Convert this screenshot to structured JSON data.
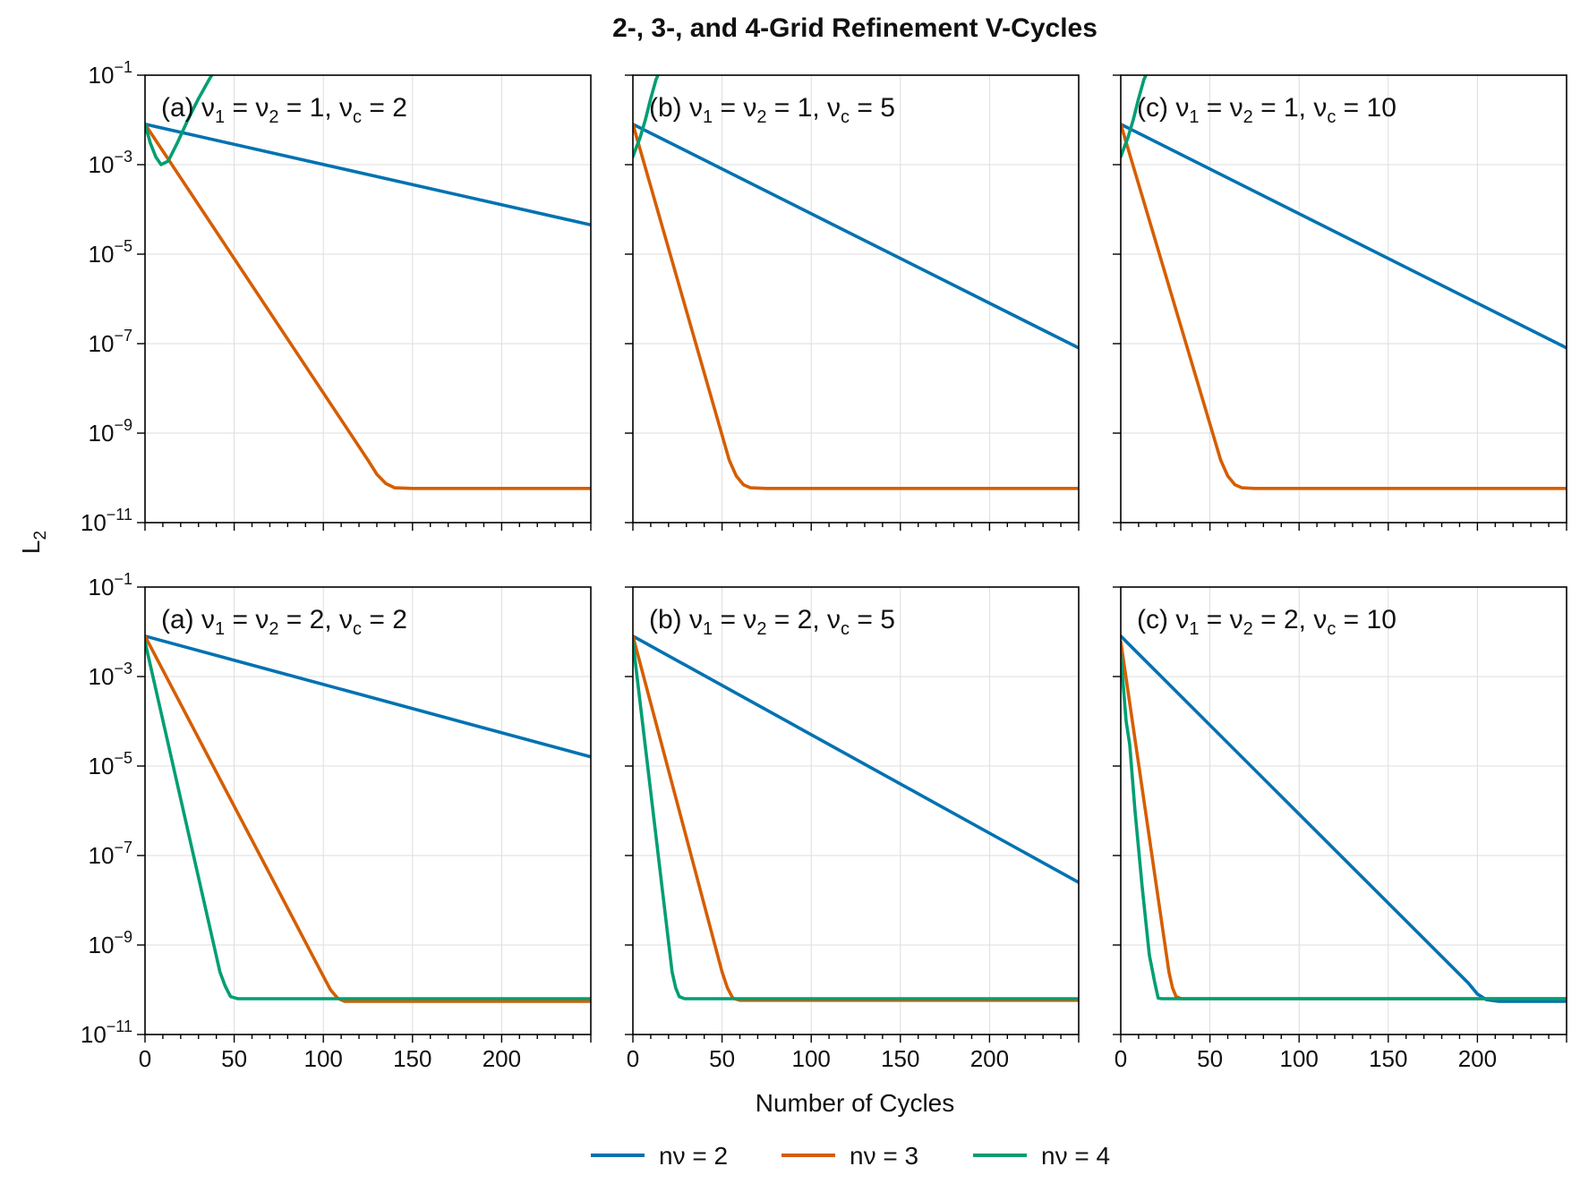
{
  "figure": {
    "title": "2-, 3-, and 4-Grid Refinement V-Cycles",
    "xlabel": "Number of Cycles",
    "ylabel_base": "L",
    "ylabel_sub": "2"
  },
  "legend": {
    "position": "bottom-center",
    "items": [
      {
        "label": "nν = 2",
        "color": "#0072B2"
      },
      {
        "label": "nν = 3",
        "color": "#D55E00"
      },
      {
        "label": "nν = 4",
        "color": "#009E73"
      }
    ]
  },
  "chart_data": [
    {
      "type": "line",
      "panel": "top-left",
      "label_prefix": "(a)",
      "nu": "1",
      "nuc": "2",
      "xlim": [
        0,
        250
      ],
      "ylim": [
        1e-11,
        0.1
      ],
      "yscale": "log",
      "grid": true,
      "xticks": [
        0,
        50,
        100,
        150,
        200
      ],
      "yticks": [
        -11,
        -9,
        -7,
        -5,
        -3,
        -1
      ],
      "series": [
        {
          "name": "nν = 2",
          "color": "#0072B2",
          "x": [
            0,
            250
          ],
          "y": [
            0.008,
            4.5e-05
          ]
        },
        {
          "name": "nν = 3",
          "color": "#D55E00",
          "x": [
            0,
            125,
            130,
            135,
            140,
            150,
            250
          ],
          "y": [
            0.008,
            2.5e-10,
            1.2e-10,
            7.5e-11,
            6e-11,
            5.8e-11,
            5.8e-11
          ]
        },
        {
          "name": "nν = 4",
          "color": "#009E73",
          "x": [
            0,
            3,
            6,
            9,
            13,
            18,
            24,
            30,
            36,
            40
          ],
          "y": [
            0.008,
            0.003,
            0.0015,
            0.001,
            0.0012,
            0.003,
            0.01,
            0.03,
            0.08,
            0.15
          ]
        }
      ]
    },
    {
      "type": "line",
      "panel": "top-middle",
      "label_prefix": "(b)",
      "nu": "1",
      "nuc": "5",
      "xlim": [
        0,
        250
      ],
      "ylim": [
        1e-11,
        0.1
      ],
      "yscale": "log",
      "grid": true,
      "xticks": [
        0,
        50,
        100,
        150,
        200
      ],
      "yticks": [
        -11,
        -9,
        -7,
        -5,
        -3,
        -1
      ],
      "series": [
        {
          "name": "nν = 2",
          "color": "#0072B2",
          "x": [
            0,
            250
          ],
          "y": [
            0.008,
            8e-08
          ]
        },
        {
          "name": "nν = 3",
          "color": "#D55E00",
          "x": [
            0,
            54,
            58,
            62,
            66,
            75,
            250
          ],
          "y": [
            0.008,
            2.5e-10,
            1.1e-10,
            7e-11,
            6e-11,
            5.8e-11,
            5.8e-11
          ]
        },
        {
          "name": "nν = 4",
          "color": "#009E73",
          "x": [
            0,
            2,
            4,
            7,
            10,
            13,
            16
          ],
          "y": [
            0.0015,
            0.0025,
            0.004,
            0.01,
            0.03,
            0.08,
            0.15
          ]
        }
      ]
    },
    {
      "type": "line",
      "panel": "top-right",
      "label_prefix": "(c)",
      "nu": "1",
      "nuc": "10",
      "xlim": [
        0,
        250
      ],
      "ylim": [
        1e-11,
        0.1
      ],
      "yscale": "log",
      "grid": true,
      "xticks": [
        0,
        50,
        100,
        150,
        200
      ],
      "yticks": [
        -11,
        -9,
        -7,
        -5,
        -3,
        -1
      ],
      "series": [
        {
          "name": "nν = 2",
          "color": "#0072B2",
          "x": [
            0,
            250
          ],
          "y": [
            0.008,
            8e-08
          ]
        },
        {
          "name": "nν = 3",
          "color": "#D55E00",
          "x": [
            0,
            56,
            60,
            64,
            68,
            75,
            250
          ],
          "y": [
            0.008,
            2.5e-10,
            1.1e-10,
            7e-11,
            6e-11,
            5.8e-11,
            5.8e-11
          ]
        },
        {
          "name": "nν = 4",
          "color": "#009E73",
          "x": [
            0,
            2,
            4,
            7,
            10,
            13,
            16
          ],
          "y": [
            0.0015,
            0.0025,
            0.004,
            0.01,
            0.03,
            0.08,
            0.15
          ]
        }
      ]
    },
    {
      "type": "line",
      "panel": "bottom-left",
      "label_prefix": "(a)",
      "nu": "2",
      "nuc": "2",
      "xlim": [
        0,
        250
      ],
      "ylim": [
        1e-11,
        0.1
      ],
      "yscale": "log",
      "grid": true,
      "xticks": [
        0,
        50,
        100,
        150,
        200
      ],
      "yticks": [
        -11,
        -9,
        -7,
        -5,
        -3,
        -1
      ],
      "series": [
        {
          "name": "nν = 2",
          "color": "#0072B2",
          "x": [
            0,
            250
          ],
          "y": [
            0.008,
            1.6e-05
          ]
        },
        {
          "name": "nν = 3",
          "color": "#D55E00",
          "x": [
            0,
            100,
            104,
            108,
            112,
            120,
            250
          ],
          "y": [
            0.008,
            2e-10,
            1e-10,
            6.5e-11,
            5.5e-11,
            5.5e-11,
            5.5e-11
          ]
        },
        {
          "name": "nν = 4",
          "color": "#009E73",
          "x": [
            0,
            42,
            45,
            48,
            52,
            60,
            250
          ],
          "y": [
            0.006,
            2.5e-10,
            1.2e-10,
            7e-11,
            6.3e-11,
            6.3e-11,
            6.3e-11
          ]
        }
      ]
    },
    {
      "type": "line",
      "panel": "bottom-middle",
      "label_prefix": "(b)",
      "nu": "2",
      "nuc": "5",
      "xlim": [
        0,
        250
      ],
      "ylim": [
        1e-11,
        0.1
      ],
      "yscale": "log",
      "grid": true,
      "xticks": [
        0,
        50,
        100,
        150,
        200
      ],
      "yticks": [
        -11,
        -9,
        -7,
        -5,
        -3,
        -1
      ],
      "series": [
        {
          "name": "nν = 2",
          "color": "#0072B2",
          "x": [
            0,
            250
          ],
          "y": [
            0.008,
            2.5e-08
          ]
        },
        {
          "name": "nν = 3",
          "color": "#D55E00",
          "x": [
            0,
            50,
            53,
            56,
            60,
            70,
            250
          ],
          "y": [
            0.008,
            2.5e-10,
            1.1e-10,
            6.5e-11,
            5.8e-11,
            5.8e-11,
            5.8e-11
          ]
        },
        {
          "name": "nν = 4",
          "color": "#009E73",
          "x": [
            0,
            22,
            24,
            26,
            29,
            35,
            250
          ],
          "y": [
            0.006,
            2.5e-10,
            1.1e-10,
            7e-11,
            6.3e-11,
            6.3e-11,
            6.3e-11
          ]
        }
      ]
    },
    {
      "type": "line",
      "panel": "bottom-right",
      "label_prefix": "(c)",
      "nu": "2",
      "nuc": "10",
      "xlim": [
        0,
        250
      ],
      "ylim": [
        1e-11,
        0.1
      ],
      "yscale": "log",
      "grid": true,
      "xticks": [
        0,
        50,
        100,
        150,
        200
      ],
      "yticks": [
        -11,
        -9,
        -7,
        -5,
        -3,
        -1
      ],
      "series": [
        {
          "name": "nν = 2",
          "color": "#0072B2",
          "x": [
            0,
            195,
            200,
            205,
            212,
            225,
            250
          ],
          "y": [
            0.008,
            1.4e-10,
            8e-11,
            6e-11,
            5.5e-11,
            5.5e-11,
            5.5e-11
          ]
        },
        {
          "name": "nν = 3",
          "color": "#D55E00",
          "x": [
            0,
            27,
            29,
            31,
            34,
            40,
            250
          ],
          "y": [
            0.006,
            2.5e-10,
            1.1e-10,
            7e-11,
            6.3e-11,
            6.3e-11,
            6.3e-11
          ]
        },
        {
          "name": "nν = 4",
          "color": "#009E73",
          "x": [
            0,
            3,
            5,
            8,
            12,
            16,
            19,
            21,
            23,
            30,
            250
          ],
          "y": [
            0.003,
            0.0001,
            3e-05,
            1e-06,
            2e-08,
            6e-10,
            1.5e-10,
            6.5e-11,
            6.3e-11,
            6.3e-11,
            6.3e-11
          ]
        }
      ]
    }
  ]
}
